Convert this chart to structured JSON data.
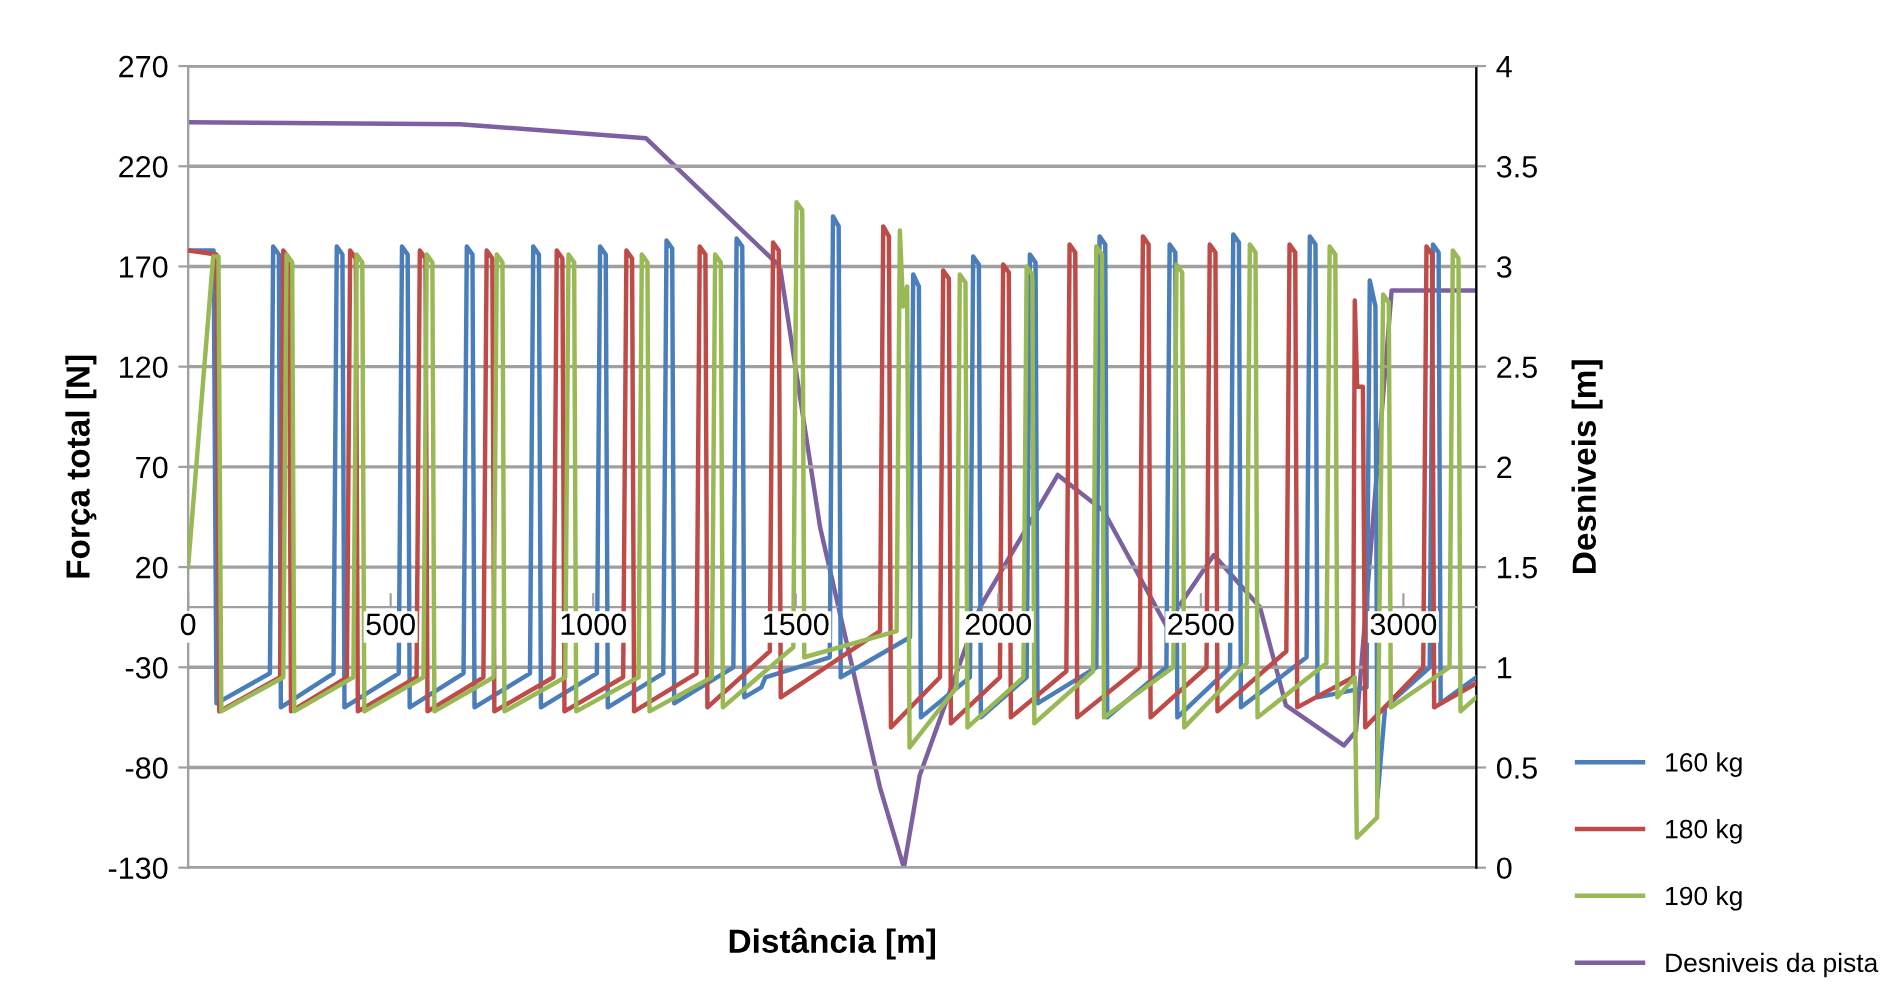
{
  "chart_data": {
    "type": "line",
    "xlabel": "Distância [m]",
    "ylabel": "Força total [N]",
    "y2label": "Desniveis [m]",
    "xlim": [
      0,
      3180
    ],
    "xticks": [
      0,
      500,
      1000,
      1500,
      2000,
      2500,
      3000
    ],
    "ylim": [
      -130,
      270
    ],
    "yticks": [
      -130,
      -80,
      -30,
      20,
      70,
      120,
      170,
      220,
      270
    ],
    "y2lim": [
      0,
      4
    ],
    "y2ticks": [
      0,
      0.5,
      1,
      1.5,
      2,
      2.5,
      3,
      3.5,
      4
    ],
    "grid": "y",
    "legend": "bottom right",
    "line_style": "solid",
    "marker": "none",
    "series": [
      {
        "name": "160 kg",
        "color": "#4a7ebb",
        "x": [
          0,
          63,
          70,
          202,
          210,
          224,
          229,
          359,
          367,
          381,
          386,
          520,
          528,
          542,
          547,
          680,
          688,
          702,
          707,
          844,
          852,
          866,
          871,
          1009,
          1017,
          1031,
          1036,
          1173,
          1181,
          1195,
          1200,
          1346,
          1354,
          1368,
          1373,
          1415,
          1425,
          1584,
          1592,
          1606,
          1611,
          1782,
          1790,
          1804,
          1809,
          1930,
          1938,
          1952,
          1957,
          2070,
          2078,
          2092,
          2097,
          2242,
          2250,
          2264,
          2269,
          2415,
          2423,
          2437,
          2442,
          2572,
          2580,
          2594,
          2599,
          2761,
          2769,
          2783,
          2788,
          2909,
          2917,
          2931,
          2936,
          2955,
          3065,
          3073,
          3087,
          3092,
          3180
        ],
        "values": [
          178,
          178,
          -48,
          -33,
          180,
          176,
          -50,
          -33,
          180,
          176,
          -50,
          -33,
          180,
          176,
          -50,
          -33,
          180,
          176,
          -50,
          -33,
          180,
          176,
          -50,
          -33,
          180,
          176,
          -50,
          -33,
          183,
          179,
          -48,
          -30,
          184,
          180,
          -45,
          -40,
          -35,
          -25,
          195,
          190,
          -35,
          -15,
          166,
          160,
          -55,
          -35,
          175,
          171,
          -55,
          -35,
          176,
          172,
          -48,
          -30,
          185,
          181,
          -55,
          -30,
          181,
          177,
          -55,
          -30,
          186,
          182,
          -50,
          -25,
          185,
          181,
          -45,
          -40,
          163,
          150,
          -95,
          -50,
          -30,
          181,
          177,
          -48,
          -35
        ]
      },
      {
        "name": "180 kg",
        "color": "#be4b48",
        "x": [
          0,
          70,
          77,
          227,
          235,
          249,
          254,
          392,
          400,
          414,
          419,
          564,
          572,
          586,
          591,
          729,
          737,
          751,
          756,
          902,
          910,
          924,
          929,
          1074,
          1082,
          1096,
          1101,
          1255,
          1263,
          1277,
          1282,
          1436,
          1444,
          1458,
          1463,
          1708,
          1716,
          1730,
          1735,
          1856,
          1864,
          1878,
          1883,
          2004,
          2012,
          2026,
          2031,
          2168,
          2176,
          2190,
          2195,
          2349,
          2357,
          2371,
          2376,
          2514,
          2522,
          2536,
          2541,
          2711,
          2719,
          2733,
          2738,
          2876,
          2880,
          2886,
          2900,
          2906,
          3049,
          3057,
          3071,
          3076,
          3180
        ],
        "values": [
          178,
          176,
          -52,
          -35,
          178,
          174,
          -52,
          -35,
          178,
          174,
          -52,
          -35,
          178,
          174,
          -52,
          -35,
          178,
          174,
          -52,
          -35,
          178,
          174,
          -52,
          -35,
          178,
          174,
          -52,
          -33,
          180,
          176,
          -50,
          -22,
          182,
          178,
          -45,
          -12,
          190,
          185,
          -60,
          -35,
          168,
          164,
          -58,
          -35,
          171,
          167,
          -55,
          -32,
          181,
          177,
          -55,
          -30,
          185,
          181,
          -55,
          -30,
          181,
          177,
          -52,
          -22,
          181,
          177,
          -50,
          -35,
          153,
          110,
          110,
          -60,
          -30,
          180,
          176,
          -50,
          -38
        ]
      },
      {
        "name": "190 kg",
        "color": "#98b954",
        "x": [
          0,
          62,
          75,
          82,
          235,
          243,
          257,
          262,
          408,
          416,
          430,
          435,
          581,
          589,
          603,
          608,
          754,
          762,
          776,
          781,
          931,
          939,
          953,
          958,
          1112,
          1120,
          1134,
          1139,
          1293,
          1301,
          1315,
          1320,
          1494,
          1502,
          1516,
          1521,
          1749,
          1757,
          1765,
          1775,
          1781,
          1897,
          1905,
          1919,
          1924,
          2062,
          2070,
          2084,
          2089,
          2234,
          2242,
          2256,
          2261,
          2432,
          2440,
          2454,
          2459,
          2613,
          2621,
          2635,
          2640,
          2810,
          2818,
          2832,
          2837,
          2880,
          2885,
          2935,
          2950,
          2964,
          2969,
          3114,
          3122,
          3136,
          3141,
          3180
        ],
        "values": [
          20,
          175,
          175,
          -52,
          -35,
          176,
          172,
          -52,
          -35,
          176,
          172,
          -52,
          -35,
          176,
          172,
          -52,
          -35,
          176,
          172,
          -52,
          -35,
          176,
          172,
          -52,
          -35,
          176,
          172,
          -52,
          -35,
          176,
          172,
          -50,
          -20,
          202,
          198,
          -25,
          -12,
          188,
          150,
          160,
          -70,
          -40,
          166,
          162,
          -60,
          -35,
          170,
          166,
          -58,
          -32,
          180,
          176,
          -55,
          -30,
          171,
          167,
          -60,
          -28,
          181,
          177,
          -55,
          -28,
          180,
          176,
          -45,
          -35,
          -115,
          -105,
          156,
          152,
          -50,
          -30,
          178,
          174,
          -52,
          -45
        ]
      },
      {
        "name": "Desniveis da pista",
        "color": "#7d60a0",
        "axis": "y2",
        "x": [
          0,
          671,
          1130,
          1461,
          1560,
          1708,
          1767,
          1806,
          1955,
          2147,
          2260,
          2414,
          2532,
          2646,
          2710,
          2853,
          2883,
          2971,
          3180
        ],
        "values": [
          3.72,
          3.71,
          3.64,
          3.0,
          1.7,
          0.4,
          0,
          0.46,
          1.3,
          1.96,
          1.78,
          1.21,
          1.56,
          1.3,
          0.81,
          0.61,
          0.68,
          2.88,
          2.88
        ]
      }
    ]
  }
}
